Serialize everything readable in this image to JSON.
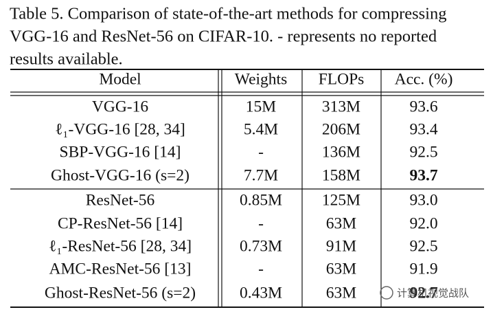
{
  "caption": [
    "Table 5. Comparison of state-of-the-art methods for compressing",
    "VGG-16 and ResNet-56 on CIFAR-10.  - represents no reported",
    "results available."
  ],
  "table": {
    "header": [
      "Model",
      "Weights",
      "FLOPs",
      "Acc. (%)"
    ],
    "rows": [
      [
        "VGG-16",
        "15M",
        "313M",
        "93.6"
      ],
      [
        "ℓ₁-VGG-16 [28, 34]",
        "5.4M",
        "206M",
        "93.4"
      ],
      [
        "SBP-VGG-16 [14]",
        "-",
        "136M",
        "92.5"
      ],
      [
        "Ghost-VGG-16 (s=2)",
        "7.7M",
        "158M",
        "93.7"
      ],
      [
        "ResNet-56",
        "0.85M",
        "125M",
        "93.0"
      ],
      [
        "CP-ResNet-56 [14]",
        "-",
        "63M",
        "92.0"
      ],
      [
        "ℓ₁-ResNet-56 [28, 34]",
        "0.73M",
        "91M",
        "92.5"
      ],
      [
        "AMC-ResNet-56 [13]",
        "-",
        "63M",
        "91.9"
      ],
      [
        "Ghost-ResNet-56 (s=2)",
        "0.43M",
        "63M",
        "92.7"
      ]
    ]
  },
  "watermark": "计算机视觉战队"
}
